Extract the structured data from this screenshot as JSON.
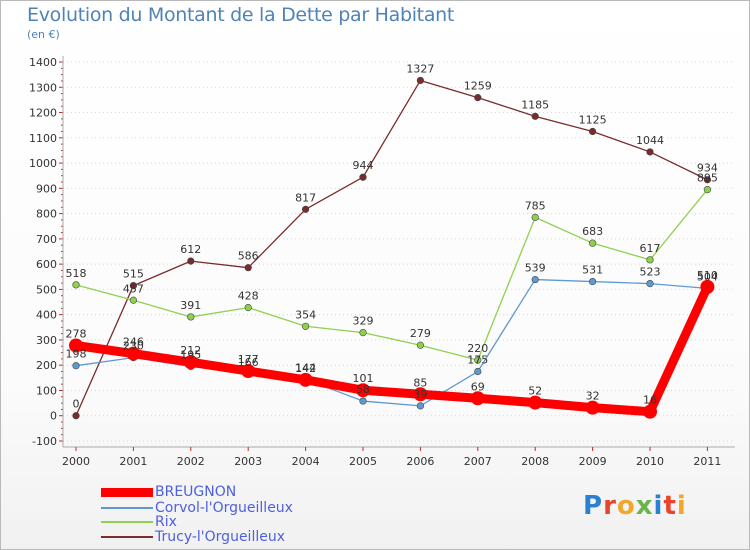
{
  "title": "Evolution du Montant de la Dette par Habitant",
  "subtitle": "(en €)",
  "brand": [
    "P",
    "r",
    "o",
    "x",
    "i",
    "t",
    "i"
  ],
  "chart_data": {
    "type": "line",
    "title": "Evolution du Montant de la Dette par Habitant",
    "ylabel": "(en €)",
    "ylim": [
      -100,
      1400
    ],
    "yticks": [
      -100,
      0,
      100,
      200,
      300,
      400,
      500,
      600,
      700,
      800,
      900,
      1000,
      1100,
      1200,
      1300,
      1400
    ],
    "x": [
      "2000",
      "2001",
      "2002",
      "2003",
      "2004",
      "2005",
      "2006",
      "2007",
      "2008",
      "2009",
      "2010",
      "2011"
    ],
    "grid": "horizontal dotted",
    "legend_position": "bottom-left",
    "series": [
      {
        "name": "BREUGNON",
        "color": "#ff0000",
        "values": [
          278,
          246,
          212,
          177,
          142,
          101,
          85,
          69,
          52,
          32,
          16,
          510
        ]
      },
      {
        "name": "Corvol-l'Orgueilleux",
        "color": "#5e9ad2",
        "values": [
          198,
          230,
          195,
          166,
          144,
          58,
          39,
          175,
          539,
          531,
          523,
          504
        ]
      },
      {
        "name": "Rix",
        "color": "#8fd14f",
        "values": [
          518,
          457,
          391,
          428,
          354,
          329,
          279,
          220,
          785,
          683,
          617,
          895
        ]
      },
      {
        "name": "Trucy-l'Orgueilleux",
        "color": "#7a2c2c",
        "values": [
          0,
          515,
          612,
          586,
          817,
          944,
          1327,
          1259,
          1185,
          1125,
          1044,
          934
        ]
      }
    ]
  }
}
